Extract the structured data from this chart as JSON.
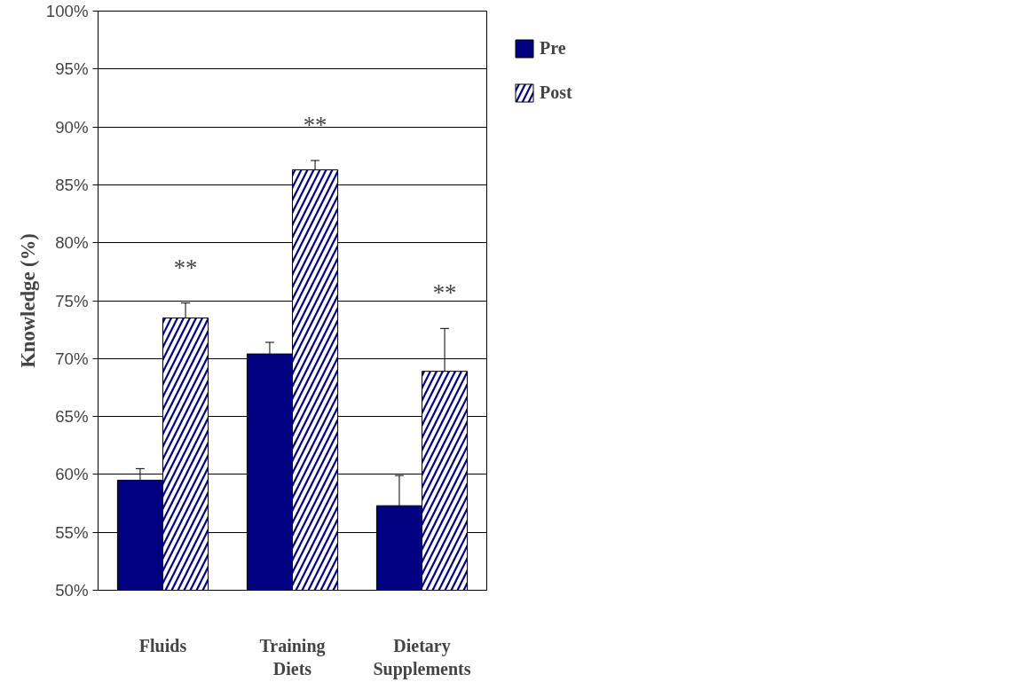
{
  "chart_data": {
    "type": "bar",
    "ylabel": "Knowledge (%)",
    "categories": [
      "Fluids",
      "Training\nDiets",
      "Dietary\nSupplements"
    ],
    "series": [
      {
        "name": "Pre",
        "color": "#000080",
        "values": [
          59.5,
          70.4,
          57.3
        ],
        "errors": [
          1.0,
          1.0,
          2.6
        ]
      },
      {
        "name": "Post",
        "color": "#000080",
        "values": [
          73.5,
          86.3,
          68.9
        ],
        "errors": [
          1.3,
          0.8,
          3.7
        ]
      }
    ],
    "ylim": [
      50,
      100
    ],
    "yticks": [
      {
        "value": 50,
        "label": "50%"
      },
      {
        "value": 55,
        "label": "55%"
      },
      {
        "value": 60,
        "label": "60%"
      },
      {
        "value": 65,
        "label": "65%"
      },
      {
        "value": 70,
        "label": "70%"
      },
      {
        "value": 75,
        "label": "75%"
      },
      {
        "value": 80,
        "label": "80%"
      },
      {
        "value": 85,
        "label": "85%"
      },
      {
        "value": 90,
        "label": "90%"
      },
      {
        "value": 95,
        "label": "95%"
      },
      {
        "value": 100,
        "label": "100%"
      }
    ],
    "grid": "y",
    "legend": "right",
    "annotations": [
      "**",
      "**",
      "**"
    ]
  }
}
